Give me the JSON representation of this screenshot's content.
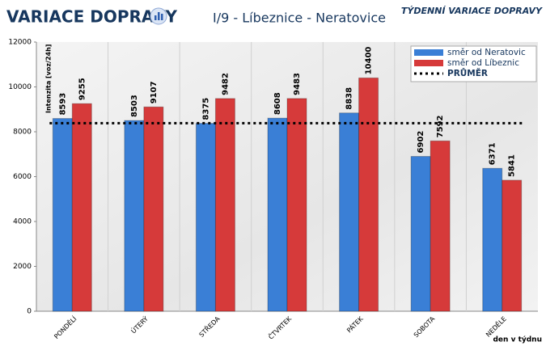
{
  "chart_data": {
    "type": "bar",
    "title": "VARIACE DOPRAVY",
    "subtitle": "I/9 - Líbeznice - Neratovice",
    "corner_title": "TÝDENNÍ VARIACE DOPRAVY",
    "y_axis_label": "Intenzita [voz/24h]",
    "x_axis_label": "den v týdnu",
    "categories": [
      "PONDĚLÍ",
      "ÚTERÝ",
      "STŘEDA",
      "ČTVRTEK",
      "PÁTEK",
      "SOBOTA",
      "NEDĚLE"
    ],
    "series": [
      {
        "name": "směr od Neratovic",
        "color": "#3a7fd6",
        "values": [
          8593,
          8503,
          8375,
          8608,
          8838,
          6902,
          6371
        ]
      },
      {
        "name": "směr od Líbeznic",
        "color": "#d63a3a",
        "values": [
          9255,
          9107,
          9482,
          9483,
          10400,
          7592,
          5841
        ]
      }
    ],
    "average_line": {
      "name": "PRŮMĚR",
      "color": "#000000",
      "value": 8382
    },
    "ylim": [
      0,
      12000
    ],
    "yticks": [
      0,
      2000,
      4000,
      6000,
      8000,
      10000,
      12000
    ],
    "grid": true,
    "legend": "top-right"
  }
}
